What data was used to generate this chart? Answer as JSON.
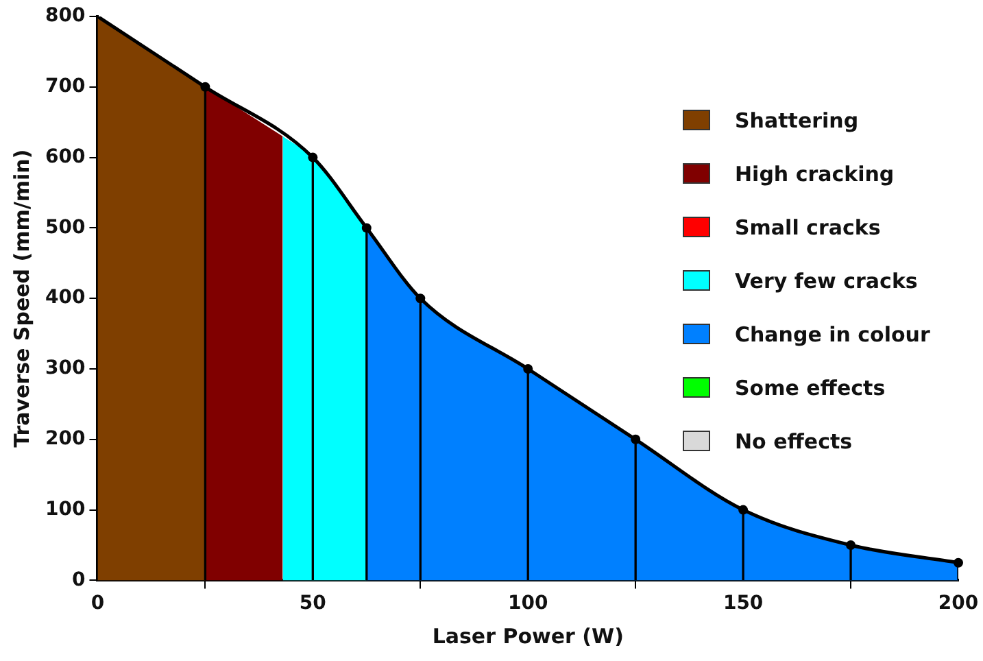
{
  "chart_data": {
    "type": "area",
    "xlabel": "Laser Power (W)",
    "ylabel": "Traverse Speed (mm/min)",
    "xlim": [
      0,
      200
    ],
    "xticks": [
      0,
      50,
      100,
      150,
      200
    ],
    "ylim": [
      0,
      800
    ],
    "yticks": [
      0,
      100,
      200,
      300,
      400,
      500,
      600,
      700,
      800
    ],
    "legend": "top right",
    "series": [
      {
        "name": "Shattering",
        "color": "#7f3f00",
        "x": [
          0,
          25
        ],
        "values": [
          800,
          700
        ]
      },
      {
        "name": "High cracking",
        "color": "#800000",
        "x": [
          25,
          43
        ],
        "values": [
          700,
          630
        ]
      },
      {
        "name": "Small cracks",
        "color": "#ff0000"
      },
      {
        "name": "Very few cracks",
        "color": "#00ffff",
        "x": [
          43,
          50,
          62.5
        ],
        "values": [
          630,
          600,
          500
        ]
      },
      {
        "name": "Change in colour",
        "color": "#0080ff",
        "x": [
          62.5,
          75,
          100,
          125,
          150,
          175,
          200
        ],
        "values": [
          500,
          400,
          300,
          200,
          100,
          50,
          25
        ]
      },
      {
        "name": "Some effects",
        "color": "#00ff00"
      },
      {
        "name": "No effects",
        "color": "#d9d9d9"
      },
      {
        "type": "line",
        "color": "#000000",
        "x": [
          0,
          25,
          50,
          62.5,
          75,
          100,
          125,
          150,
          175,
          200
        ],
        "values": [
          800,
          700,
          600,
          500,
          400,
          300,
          200,
          100,
          50,
          25
        ]
      },
      {
        "type": "lollipop",
        "color": "#000000",
        "marker": "circle",
        "x": [
          25,
          50,
          62.5,
          75,
          100,
          125,
          150,
          175,
          200
        ],
        "values": [
          700,
          600,
          500,
          400,
          300,
          200,
          100,
          50,
          25
        ]
      }
    ]
  }
}
